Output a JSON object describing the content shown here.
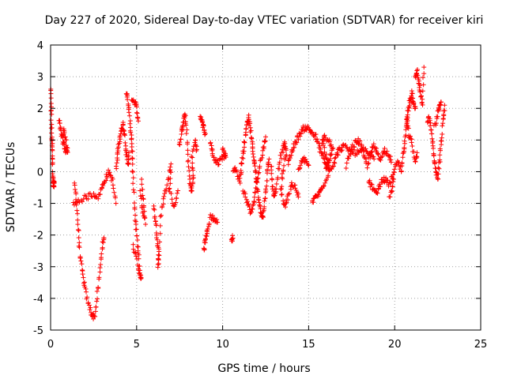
{
  "chart_data": {
    "type": "scatter",
    "title": "Day 227 of 2020, Sidereal Day-to-day VTEC variation (SDTVAR) for receiver kiri",
    "xlabel": "GPS time / hours",
    "ylabel": "SDTVAR / TECUs",
    "xlim": [
      0,
      25
    ],
    "ylim": [
      -5,
      4
    ],
    "xticks": [
      0,
      5,
      10,
      15,
      20,
      25
    ],
    "yticks": [
      -5,
      -4,
      -3,
      -2,
      -1,
      0,
      1,
      2,
      3,
      4
    ],
    "xtick_labels": [
      "0",
      "5",
      "10",
      "15",
      "20",
      "25"
    ],
    "ytick_labels": [
      "-5",
      "-4",
      "-3",
      "-2",
      "-1",
      "0",
      "1",
      "2",
      "3",
      "4"
    ],
    "grid": true,
    "marker": "+",
    "marker_color": "#ff0000",
    "series": [
      {
        "name": "SDTVAR",
        "segments": [
          [
            [
              0.0,
              2.6
            ],
            [
              0.03,
              2.1
            ],
            [
              0.05,
              1.4
            ],
            [
              0.08,
              0.9
            ],
            [
              0.1,
              0.5
            ],
            [
              0.12,
              0.0
            ],
            [
              0.15,
              -0.3
            ],
            [
              0.18,
              -0.5
            ],
            [
              0.2,
              -0.3
            ]
          ],
          [
            [
              0.5,
              1.6
            ],
            [
              0.6,
              1.3
            ],
            [
              0.7,
              1.0
            ],
            [
              0.8,
              0.8
            ],
            [
              0.9,
              0.6
            ],
            [
              1.0,
              0.7
            ],
            [
              0.85,
              1.1
            ],
            [
              0.75,
              1.3
            ]
          ],
          [
            [
              1.4,
              -0.4
            ],
            [
              1.5,
              -0.9
            ],
            [
              1.6,
              -1.8
            ],
            [
              1.7,
              -2.6
            ],
            [
              1.85,
              -3.2
            ],
            [
              2.0,
              -3.7
            ],
            [
              2.2,
              -4.2
            ],
            [
              2.4,
              -4.5
            ],
            [
              2.55,
              -4.6
            ],
            [
              2.7,
              -4.0
            ],
            [
              2.85,
              -3.2
            ],
            [
              3.0,
              -2.4
            ],
            [
              3.1,
              -2.1
            ]
          ],
          [
            [
              1.3,
              -1.0
            ],
            [
              1.7,
              -0.9
            ],
            [
              2.1,
              -0.8
            ],
            [
              2.5,
              -0.7
            ],
            [
              2.8,
              -0.8
            ],
            [
              3.0,
              -0.5
            ],
            [
              3.2,
              -0.2
            ],
            [
              3.4,
              0.0
            ],
            [
              3.6,
              -0.3
            ],
            [
              3.8,
              -1.0
            ]
          ],
          [
            [
              3.8,
              0.1
            ],
            [
              3.9,
              0.6
            ],
            [
              4.0,
              1.0
            ],
            [
              4.1,
              1.3
            ],
            [
              4.2,
              1.5
            ],
            [
              4.3,
              1.2
            ],
            [
              4.4,
              0.6
            ],
            [
              4.5,
              0.2
            ],
            [
              4.55,
              0.6
            ]
          ],
          [
            [
              4.4,
              2.5
            ],
            [
              4.5,
              2.2
            ],
            [
              4.6,
              1.6
            ],
            [
              4.7,
              1.1
            ],
            [
              4.75,
              0.5
            ],
            [
              4.8,
              -0.4
            ],
            [
              4.9,
              -1.4
            ],
            [
              5.0,
              -2.0
            ],
            [
              5.1,
              -2.6
            ],
            [
              5.2,
              -3.2
            ],
            [
              5.25,
              -3.4
            ],
            [
              5.0,
              -2.8
            ],
            [
              4.8,
              -2.3
            ]
          ],
          [
            [
              4.7,
              2.3
            ],
            [
              4.9,
              2.2
            ],
            [
              5.0,
              2.0
            ],
            [
              5.1,
              1.6
            ]
          ],
          [
            [
              5.3,
              -0.3
            ],
            [
              5.4,
              -0.9
            ],
            [
              5.5,
              -1.6
            ],
            [
              5.35,
              -1.2
            ],
            [
              5.2,
              -0.6
            ]
          ],
          [
            [
              6.0,
              -1.1
            ],
            [
              6.1,
              -1.6
            ],
            [
              6.2,
              -2.1
            ],
            [
              6.3,
              -2.6
            ],
            [
              6.25,
              -3.0
            ],
            [
              6.4,
              -1.4
            ],
            [
              6.6,
              -0.8
            ],
            [
              6.8,
              -0.3
            ],
            [
              7.0,
              0.2
            ],
            [
              6.9,
              -0.6
            ],
            [
              7.2,
              -1.1
            ],
            [
              7.4,
              -0.6
            ]
          ],
          [
            [
              7.5,
              0.8
            ],
            [
              7.6,
              1.2
            ],
            [
              7.7,
              1.6
            ],
            [
              7.8,
              1.8
            ],
            [
              7.9,
              1.3
            ],
            [
              8.0,
              0.4
            ],
            [
              8.1,
              -0.4
            ],
            [
              8.2,
              -0.6
            ],
            [
              8.3,
              -0.2
            ],
            [
              8.2,
              0.4
            ],
            [
              8.4,
              1.0
            ],
            [
              8.5,
              0.7
            ]
          ],
          [
            [
              8.7,
              1.7
            ],
            [
              8.8,
              1.6
            ],
            [
              8.9,
              1.4
            ],
            [
              9.0,
              1.2
            ]
          ],
          [
            [
              8.9,
              -2.5
            ],
            [
              9.0,
              -2.1
            ],
            [
              9.1,
              -1.9
            ],
            [
              9.3,
              -1.4
            ],
            [
              9.5,
              -1.5
            ],
            [
              9.7,
              -1.6
            ]
          ],
          [
            [
              9.3,
              0.9
            ],
            [
              9.4,
              0.6
            ],
            [
              9.6,
              0.3
            ],
            [
              9.8,
              0.3
            ],
            [
              10.0,
              0.5
            ],
            [
              10.2,
              0.5
            ],
            [
              10.0,
              0.7
            ]
          ],
          [
            [
              10.5,
              -2.1
            ],
            [
              10.6,
              -2.1
            ]
          ],
          [
            [
              10.6,
              0.1
            ],
            [
              10.8,
              0.0
            ],
            [
              11.0,
              -0.3
            ],
            [
              11.1,
              0.2
            ],
            [
              11.2,
              0.6
            ],
            [
              11.3,
              1.0
            ],
            [
              11.4,
              1.5
            ],
            [
              11.5,
              1.7
            ],
            [
              11.6,
              1.4
            ],
            [
              11.7,
              0.9
            ],
            [
              11.8,
              0.5
            ],
            [
              11.9,
              0.1
            ],
            [
              12.0,
              -0.4
            ],
            [
              12.1,
              -0.9
            ],
            [
              12.2,
              -1.2
            ],
            [
              12.3,
              -1.5
            ],
            [
              12.4,
              -1.2
            ],
            [
              12.5,
              -0.6
            ],
            [
              12.6,
              0.0
            ],
            [
              12.7,
              0.4
            ]
          ],
          [
            [
              11.2,
              -0.6
            ],
            [
              11.4,
              -0.9
            ],
            [
              11.6,
              -1.3
            ],
            [
              11.8,
              -1.1
            ],
            [
              11.9,
              -0.6
            ],
            [
              12.0,
              -0.2
            ],
            [
              12.2,
              0.3
            ],
            [
              12.4,
              0.8
            ],
            [
              12.5,
              1.1
            ]
          ],
          [
            [
              12.8,
              0.2
            ],
            [
              12.9,
              -0.4
            ],
            [
              13.0,
              -0.8
            ],
            [
              13.1,
              -0.5
            ],
            [
              13.3,
              0.3
            ],
            [
              13.5,
              0.7
            ],
            [
              13.6,
              0.9
            ],
            [
              13.7,
              0.6
            ],
            [
              13.5,
              0.0
            ],
            [
              13.4,
              -0.6
            ],
            [
              13.6,
              -1.1
            ],
            [
              13.8,
              -0.8
            ],
            [
              14.0,
              -0.4
            ],
            [
              14.2,
              -0.5
            ],
            [
              14.4,
              -0.8
            ]
          ],
          [
            [
              13.8,
              0.3
            ],
            [
              14.0,
              0.6
            ],
            [
              14.2,
              0.9
            ],
            [
              14.4,
              1.1
            ],
            [
              14.6,
              1.3
            ],
            [
              14.8,
              1.4
            ],
            [
              15.0,
              1.35
            ],
            [
              15.2,
              1.25
            ],
            [
              15.4,
              1.1
            ],
            [
              15.6,
              0.8
            ],
            [
              15.8,
              0.5
            ],
            [
              16.0,
              0.2
            ],
            [
              16.2,
              0.1
            ],
            [
              16.0,
              0.5
            ],
            [
              15.8,
              0.9
            ],
            [
              15.9,
              1.1
            ],
            [
              16.2,
              1.0
            ],
            [
              16.4,
              0.7
            ],
            [
              16.2,
              0.4
            ],
            [
              16.0,
              0.1
            ]
          ],
          [
            [
              14.4,
              0.0
            ],
            [
              14.6,
              0.3
            ],
            [
              14.8,
              0.4
            ],
            [
              15.0,
              0.2
            ]
          ],
          [
            [
              15.2,
              -1.0
            ],
            [
              15.4,
              -0.8
            ],
            [
              15.6,
              -0.7
            ],
            [
              15.8,
              -0.5
            ],
            [
              16.1,
              -0.1
            ],
            [
              16.4,
              0.2
            ],
            [
              16.6,
              0.5
            ],
            [
              16.8,
              0.7
            ],
            [
              17.0,
              0.8
            ],
            [
              17.3,
              0.7
            ],
            [
              17.6,
              0.6
            ],
            [
              17.9,
              0.6
            ],
            [
              18.2,
              0.7
            ],
            [
              18.5,
              0.5
            ],
            [
              18.8,
              0.4
            ]
          ],
          [
            [
              17.2,
              0.2
            ],
            [
              17.4,
              0.6
            ],
            [
              17.6,
              0.8
            ],
            [
              17.8,
              1.0
            ],
            [
              18.0,
              0.9
            ],
            [
              18.2,
              0.5
            ],
            [
              18.4,
              0.2
            ],
            [
              18.6,
              0.6
            ],
            [
              18.8,
              0.8
            ],
            [
              19.0,
              0.6
            ],
            [
              19.2,
              0.4
            ],
            [
              19.4,
              0.7
            ],
            [
              19.6,
              0.6
            ],
            [
              19.8,
              0.3
            ]
          ],
          [
            [
              18.5,
              -0.3
            ],
            [
              18.7,
              -0.5
            ],
            [
              18.9,
              -0.7
            ],
            [
              19.1,
              -0.5
            ],
            [
              19.3,
              -0.2
            ],
            [
              19.5,
              -0.3
            ],
            [
              19.7,
              -0.4
            ],
            [
              19.9,
              -0.1
            ]
          ],
          [
            [
              19.7,
              -0.8
            ],
            [
              19.9,
              -0.5
            ],
            [
              20.0,
              0.1
            ],
            [
              20.2,
              0.3
            ],
            [
              20.4,
              0.0
            ],
            [
              20.5,
              0.6
            ],
            [
              20.6,
              1.1
            ],
            [
              20.7,
              1.6
            ],
            [
              20.8,
              2.0
            ],
            [
              20.9,
              2.3
            ],
            [
              21.0,
              2.5
            ],
            [
              21.1,
              2.2
            ],
            [
              21.2,
              2.0
            ]
          ],
          [
            [
              21.2,
              2.9
            ],
            [
              21.3,
              3.2
            ],
            [
              21.4,
              2.8
            ],
            [
              21.5,
              2.5
            ],
            [
              21.6,
              2.1
            ],
            [
              21.7,
              3.3
            ]
          ],
          [
            [
              20.7,
              1.7
            ],
            [
              20.8,
              1.2
            ],
            [
              21.0,
              0.9
            ],
            [
              21.2,
              0.3
            ],
            [
              21.3,
              0.6
            ]
          ],
          [
            [
              21.9,
              1.5
            ],
            [
              22.0,
              1.7
            ],
            [
              22.1,
              1.4
            ],
            [
              22.2,
              0.9
            ],
            [
              22.3,
              0.4
            ],
            [
              22.4,
              0.0
            ],
            [
              22.5,
              -0.2
            ],
            [
              22.6,
              0.3
            ],
            [
              22.7,
              0.9
            ],
            [
              22.8,
              1.6
            ],
            [
              22.9,
              2.1
            ]
          ],
          [
            [
              22.3,
              1.4
            ],
            [
              22.5,
              1.8
            ],
            [
              22.6,
              2.0
            ],
            [
              22.7,
              2.2
            ]
          ]
        ]
      }
    ]
  }
}
